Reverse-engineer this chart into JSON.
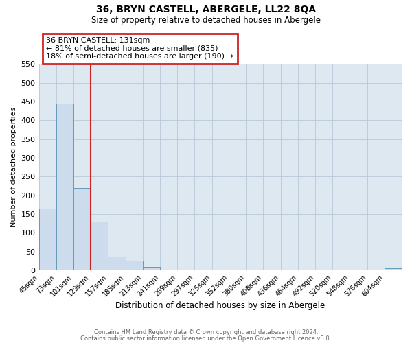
{
  "title": "36, BRYN CASTELL, ABERGELE, LL22 8QA",
  "subtitle": "Size of property relative to detached houses in Abergele",
  "xlabel": "Distribution of detached houses by size in Abergele",
  "ylabel": "Number of detached properties",
  "bin_labels": [
    "45sqm",
    "73sqm",
    "101sqm",
    "129sqm",
    "157sqm",
    "185sqm",
    "213sqm",
    "241sqm",
    "269sqm",
    "297sqm",
    "325sqm",
    "352sqm",
    "380sqm",
    "408sqm",
    "436sqm",
    "464sqm",
    "492sqm",
    "520sqm",
    "548sqm",
    "576sqm",
    "604sqm"
  ],
  "bin_edges": [
    45,
    73,
    101,
    129,
    157,
    185,
    213,
    241,
    269,
    297,
    325,
    352,
    380,
    408,
    436,
    464,
    492,
    520,
    548,
    576,
    604
  ],
  "bar_heights": [
    165,
    445,
    220,
    130,
    37,
    25,
    10,
    1,
    0,
    0,
    1,
    0,
    0,
    0,
    0,
    0,
    0,
    0,
    0,
    0,
    5
  ],
  "bar_color": "#ccdcec",
  "bar_edgecolor": "#6699bb",
  "grid_color": "#b8c8d8",
  "bg_color": "#dde8f0",
  "vline_x": 129,
  "vline_color": "#cc2222",
  "annotation_text": "36 BRYN CASTELL: 131sqm\n← 81% of detached houses are smaller (835)\n18% of semi-detached houses are larger (190) →",
  "annotation_box_color": "#cc2222",
  "ylim": [
    0,
    550
  ],
  "yticks": [
    0,
    50,
    100,
    150,
    200,
    250,
    300,
    350,
    400,
    450,
    500,
    550
  ],
  "footer_line1": "Contains HM Land Registry data © Crown copyright and database right 2024.",
  "footer_line2": "Contains public sector information licensed under the Open Government Licence v3.0."
}
